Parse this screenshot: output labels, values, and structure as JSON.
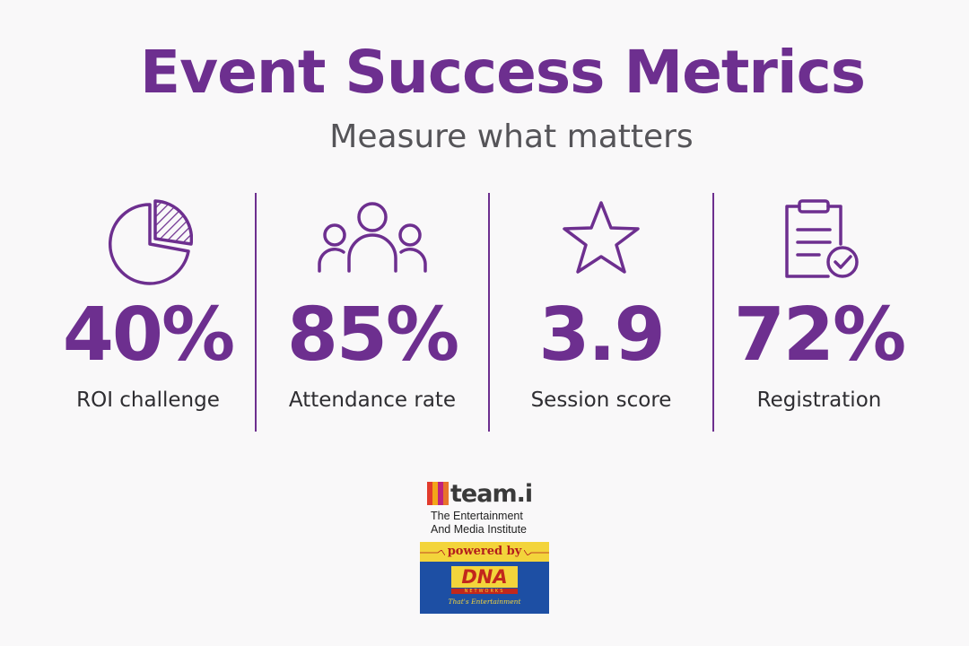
{
  "header": {
    "title": "Event Success Metrics",
    "subtitle": "Measure what matters"
  },
  "metrics": [
    {
      "icon": "pie-chart-icon",
      "value": "40%",
      "label": "ROI challenge"
    },
    {
      "icon": "people-group-icon",
      "value": "85%",
      "label": "Attendance rate"
    },
    {
      "icon": "star-icon",
      "value": "3.9",
      "label": "Session score"
    },
    {
      "icon": "clipboard-check-icon",
      "value": "72%",
      "label": "Registration"
    }
  ],
  "logo": {
    "brand": "team.i",
    "tagline_line1": "The Entertainment",
    "tagline_line2": "And Media Institute",
    "powered_by": "powered by",
    "partner": "DNA",
    "partner_sub": "NETWORKS",
    "partner_tagline": "That's Entertainment"
  },
  "colors": {
    "accent": "#6d2f8f",
    "text": "#2e2d31",
    "background": "#f9f8f9"
  }
}
